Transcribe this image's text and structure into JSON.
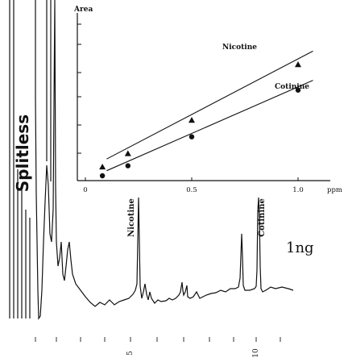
{
  "left_label": "Splitless",
  "amount_label": "1ng",
  "peak_labels": {
    "nicotine": "Nicotine",
    "cotinine": "Cotinine"
  },
  "bottom_axis": {
    "ticks": [
      "5",
      "10"
    ]
  },
  "chart_data": {
    "type": "scatter",
    "title": "",
    "ylabel": "Area",
    "xlabel": "ppm",
    "xlim": [
      0,
      1.0
    ],
    "xticks": [
      "0",
      "0.5",
      "1.0"
    ],
    "x_unit": "ppm",
    "series": [
      {
        "name": "Nicotine",
        "marker": "triangle",
        "x": [
          0.08,
          0.2,
          0.5,
          1.0
        ],
        "y": [
          0.08,
          0.2,
          0.5,
          1.0
        ]
      },
      {
        "name": "Cotinine",
        "marker": "circle",
        "x": [
          0.08,
          0.2,
          0.5,
          1.0
        ],
        "y": [
          0.0,
          0.09,
          0.35,
          0.77
        ]
      }
    ],
    "annotations": [
      {
        "text": "Nicotine",
        "target": "series-0"
      },
      {
        "text": "Cotinine",
        "target": "series-1"
      }
    ],
    "fit_lines": true,
    "grid": false
  }
}
